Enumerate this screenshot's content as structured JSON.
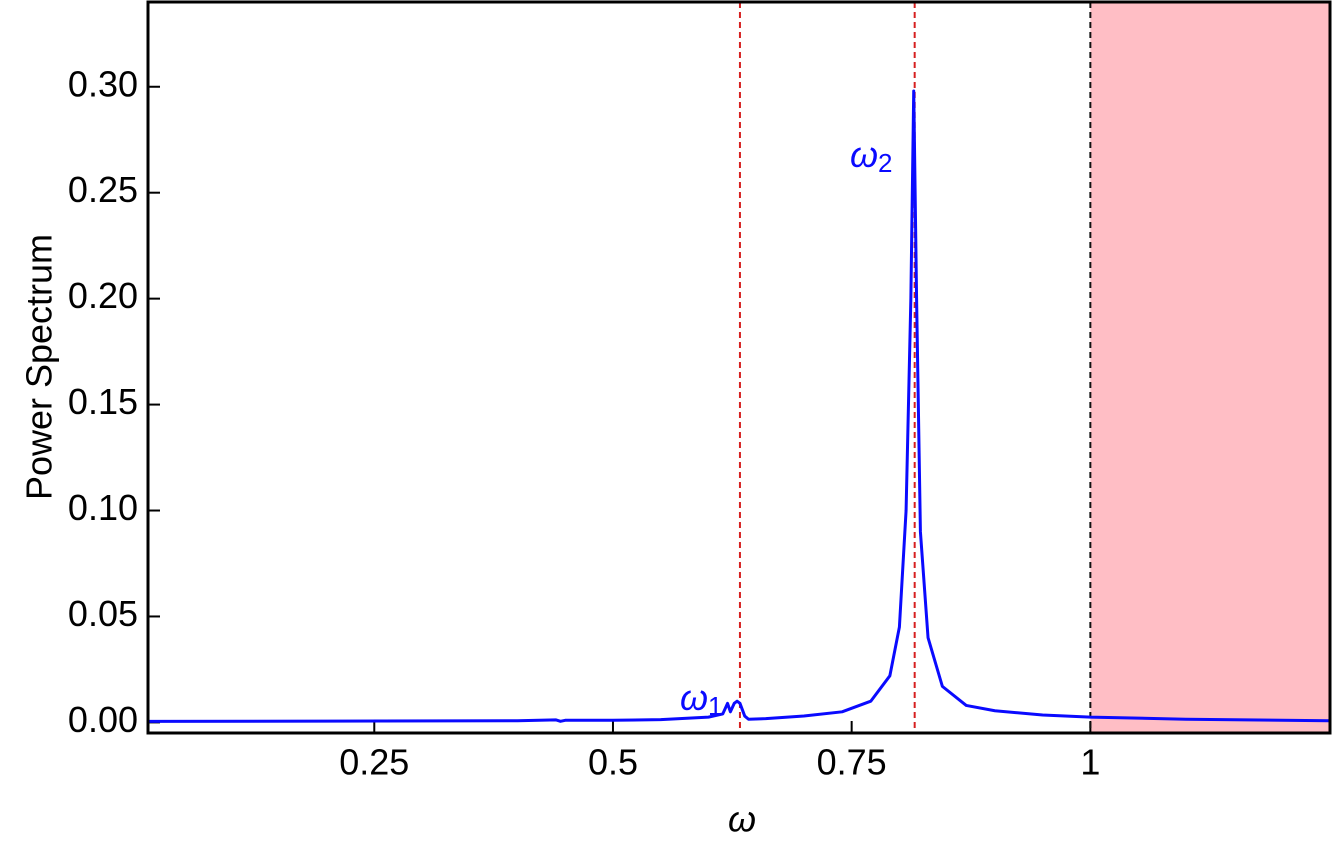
{
  "chart_data": {
    "type": "line",
    "x_label": "ω",
    "y_label": "Power Spectrum",
    "xlim": [
      0.013,
      1.251
    ],
    "ylim": [
      -0.005,
      0.34
    ],
    "xticks": [
      0.25,
      0.5,
      0.75,
      1
    ],
    "yticks": [
      {
        "value": 0,
        "label": "0.00"
      },
      {
        "value": 0.05,
        "label": "0.05"
      },
      {
        "value": 0.1,
        "label": "0.10"
      },
      {
        "value": 0.15,
        "label": "0.15"
      },
      {
        "value": 0.2,
        "label": "0.20"
      },
      {
        "value": 0.25,
        "label": "0.25"
      },
      {
        "value": 0.3,
        "label": "0.30"
      }
    ],
    "shaded_region": {
      "x": [
        1,
        1.251
      ],
      "color": "#ffbec5"
    },
    "vlines": [
      {
        "x": 0.633,
        "color": "#d62020"
      },
      {
        "x": 0.816,
        "color": "#d62020"
      },
      {
        "x": 1,
        "color": "#111111"
      }
    ],
    "annotations": [
      {
        "text": "ω",
        "subscript": "1"
      },
      {
        "text": "ω",
        "subscript": "2"
      }
    ],
    "series": [
      {
        "color": "#0a0aff",
        "x": [
          0.013,
          0.2,
          0.4,
          0.44,
          0.445,
          0.45,
          0.5,
          0.55,
          0.6,
          0.615,
          0.62,
          0.623,
          0.627,
          0.63,
          0.633,
          0.638,
          0.642,
          0.66,
          0.7,
          0.74,
          0.77,
          0.79,
          0.8,
          0.807,
          0.812,
          0.815,
          0.818,
          0.822,
          0.83,
          0.845,
          0.87,
          0.9,
          0.95,
          1.0,
          1.1,
          1.25
        ],
        "values": [
          0.0005,
          0.0006,
          0.0008,
          0.0012,
          0.0005,
          0.001,
          0.001,
          0.0013,
          0.0025,
          0.004,
          0.009,
          0.005,
          0.009,
          0.01,
          0.009,
          0.003,
          0.0015,
          0.0018,
          0.003,
          0.005,
          0.01,
          0.022,
          0.045,
          0.1,
          0.2,
          0.298,
          0.2,
          0.09,
          0.04,
          0.017,
          0.008,
          0.0055,
          0.0035,
          0.0025,
          0.0015,
          0.0008
        ]
      }
    ]
  }
}
